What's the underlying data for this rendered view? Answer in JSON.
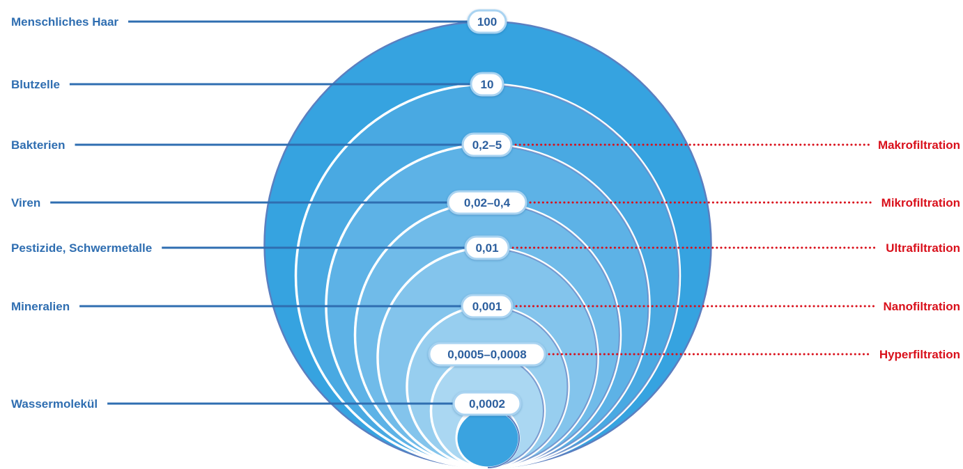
{
  "colors": {
    "label_blue": "#2f6eb1",
    "connector_blue": "#2f6eb1",
    "filtration_red": "#d9101b",
    "pill_text": "#2c5f9e",
    "circle_fills": [
      "#36a3e0",
      "#49a9e2",
      "#5db2e6",
      "#70bbe9",
      "#83c4ec",
      "#97ceef",
      "#aad7f2",
      "#bce0f5",
      "#3aa3e0"
    ],
    "outline": "#5b7fc0"
  },
  "particles": [
    {
      "label": "Menschliches Haar",
      "size": "100"
    },
    {
      "label": "Blutzelle",
      "size": "10"
    },
    {
      "label": "Bakterien",
      "size": "0,2–5"
    },
    {
      "label": "Viren",
      "size": "0,02–0,4"
    },
    {
      "label": "Pestizide, Schwermetalle",
      "size": "0,01"
    },
    {
      "label": "Mineralien",
      "size": "0,001"
    },
    {
      "label": "",
      "size": "0,0005–0,0008"
    },
    {
      "label": "Wassermolekül",
      "size": "0,0002"
    }
  ],
  "filtrations": [
    {
      "label": "Makrofiltration",
      "row": 2
    },
    {
      "label": "Mikrofiltration",
      "row": 3
    },
    {
      "label": "Ultrafiltration",
      "row": 4
    },
    {
      "label": "Nanofiltration",
      "row": 5
    },
    {
      "label": "Hyperfiltration",
      "row": 6
    }
  ]
}
